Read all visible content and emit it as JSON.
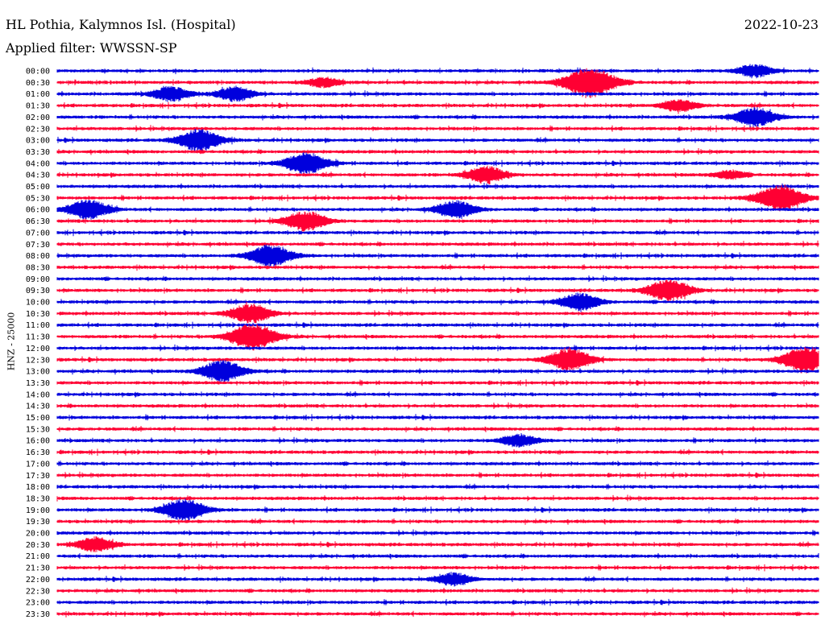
{
  "header": {
    "station": "HL Pothia, Kalymnos Isl. (Hospital)",
    "date": "2022-10-23",
    "filter": "Applied filter: WWSSN-SP"
  },
  "chart_data": {
    "type": "line",
    "ylabel": "HNZ - 25000",
    "colors": [
      "#0000dd",
      "#ff0033"
    ],
    "rows": [
      "00:00",
      "00:30",
      "01:00",
      "01:30",
      "02:00",
      "02:30",
      "03:00",
      "03:30",
      "04:00",
      "04:30",
      "05:00",
      "05:30",
      "06:00",
      "06:30",
      "07:00",
      "07:30",
      "08:00",
      "08:30",
      "09:00",
      "09:30",
      "10:00",
      "10:30",
      "11:00",
      "11:30",
      "12:00",
      "12:30",
      "13:00",
      "13:30",
      "14:00",
      "14:30",
      "15:00",
      "15:30",
      "16:00",
      "16:30",
      "17:00",
      "17:30",
      "18:00",
      "18:30",
      "19:00",
      "19:30",
      "20:00",
      "20:30",
      "21:00",
      "21:30",
      "22:00",
      "22:30",
      "23:00",
      "23:30"
    ],
    "events": [
      {
        "row": "00:00",
        "minute": 27.5,
        "amp": 0.5
      },
      {
        "row": "00:30",
        "minute": 10.5,
        "amp": 0.4
      },
      {
        "row": "00:30",
        "minute": 21.0,
        "amp": 1.3
      },
      {
        "row": "01:00",
        "minute": 4.5,
        "amp": 0.6
      },
      {
        "row": "01:00",
        "minute": 7.0,
        "amp": 0.6
      },
      {
        "row": "01:30",
        "minute": 24.5,
        "amp": 0.5
      },
      {
        "row": "02:00",
        "minute": 27.5,
        "amp": 0.8
      },
      {
        "row": "03:00",
        "minute": 5.6,
        "amp": 0.9
      },
      {
        "row": "04:00",
        "minute": 9.8,
        "amp": 0.9
      },
      {
        "row": "04:30",
        "minute": 16.9,
        "amp": 0.7
      },
      {
        "row": "04:30",
        "minute": 26.5,
        "amp": 0.35
      },
      {
        "row": "05:30",
        "minute": 28.5,
        "amp": 1.1
      },
      {
        "row": "06:00",
        "minute": 1.2,
        "amp": 0.8
      },
      {
        "row": "06:00",
        "minute": 15.7,
        "amp": 0.7
      },
      {
        "row": "06:30",
        "minute": 9.8,
        "amp": 0.8
      },
      {
        "row": "08:00",
        "minute": 8.4,
        "amp": 0.9
      },
      {
        "row": "09:30",
        "minute": 24.1,
        "amp": 0.9
      },
      {
        "row": "10:00",
        "minute": 20.6,
        "amp": 0.7
      },
      {
        "row": "10:30",
        "minute": 7.6,
        "amp": 0.8
      },
      {
        "row": "11:30",
        "minute": 7.7,
        "amp": 1.1
      },
      {
        "row": "12:30",
        "minute": 20.2,
        "amp": 0.9
      },
      {
        "row": "12:30",
        "minute": 29.5,
        "amp": 1.1
      },
      {
        "row": "13:00",
        "minute": 6.5,
        "amp": 0.9
      },
      {
        "row": "16:00",
        "minute": 18.2,
        "amp": 0.5
      },
      {
        "row": "19:00",
        "minute": 5.0,
        "amp": 0.9
      },
      {
        "row": "20:30",
        "minute": 1.5,
        "amp": 0.6
      },
      {
        "row": "22:00",
        "minute": 15.6,
        "amp": 0.5
      }
    ]
  }
}
